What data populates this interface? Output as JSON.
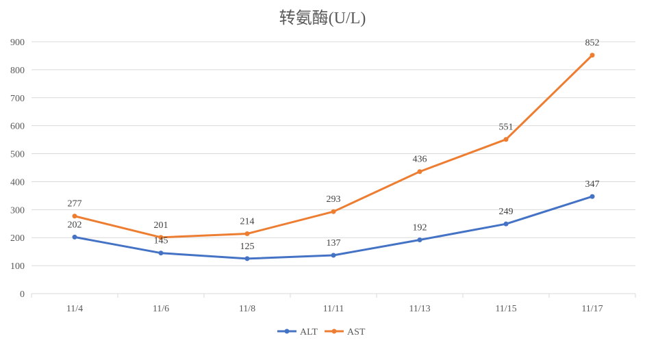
{
  "chart_data": {
    "type": "line",
    "title": "转氨酶(U/L)",
    "categories": [
      "11/4",
      "11/6",
      "11/8",
      "11/11",
      "11/13",
      "11/15",
      "11/17"
    ],
    "ylim": [
      0,
      900
    ],
    "yticks": [
      0,
      100,
      200,
      300,
      400,
      500,
      600,
      700,
      800,
      900
    ],
    "grid": true,
    "legend": "bottom",
    "series": [
      {
        "name": "ALT",
        "color": "#4472C4",
        "values": [
          202,
          145,
          125,
          137,
          192,
          249,
          347
        ]
      },
      {
        "name": "AST",
        "color": "#ED7D31",
        "values": [
          277,
          201,
          214,
          293,
          436,
          551,
          852
        ]
      }
    ]
  }
}
